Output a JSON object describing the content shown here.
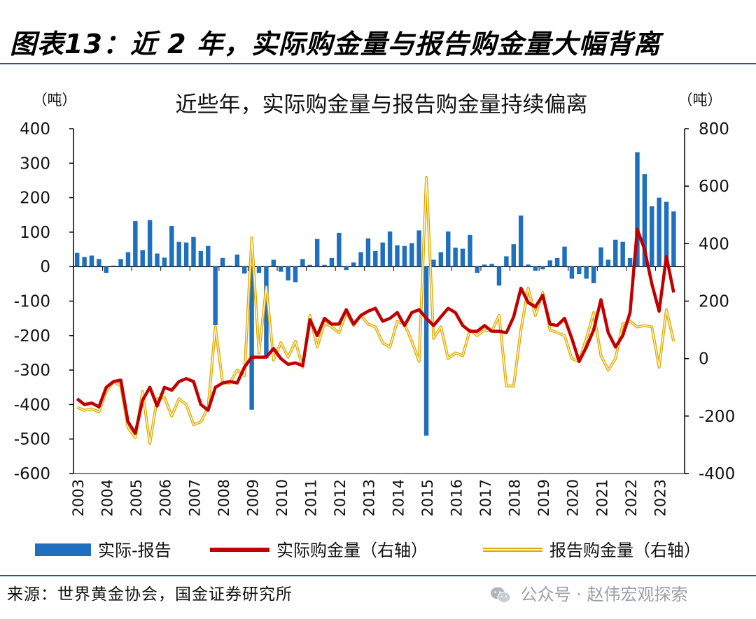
{
  "figure": {
    "title": "图表13：近 2 年，实际购金量与报告购金量大幅背离",
    "source": "来源：世界黄金协会，国金证券研究所",
    "watermark": "公众号 · 赵伟宏观探索"
  },
  "chart_data": {
    "type": "bar+line",
    "title": "近些年，实际购金量与报告购金量持续偏离",
    "left_axis_unit": "（吨）",
    "right_axis_unit": "（吨）",
    "left_ylim": [
      -600,
      400
    ],
    "left_ticks": [
      400,
      300,
      200,
      100,
      0,
      -100,
      -200,
      -300,
      -400,
      -500,
      -600
    ],
    "right_ylim": [
      -400,
      800
    ],
    "right_ticks": [
      800,
      600,
      400,
      200,
      0,
      -200,
      -400
    ],
    "x_ticks": [
      "2003",
      "2004",
      "2005",
      "2006",
      "2007",
      "2008",
      "2009",
      "2010",
      "2011",
      "2012",
      "2013",
      "2014",
      "2015",
      "2016",
      "2017",
      "2018",
      "2019",
      "2020",
      "2021",
      "2022",
      "2023"
    ],
    "x_start_year": 2003,
    "quarters_per_year": 4,
    "colors": {
      "bar": "#1f6fbf",
      "actual": "#c00000",
      "reported": "#f2c21b",
      "reported_edge": "#e0a800"
    },
    "series": [
      {
        "name": "实际-报告",
        "axis": "left",
        "type": "bar",
        "values": [
          40,
          28,
          32,
          22,
          -18,
          3,
          22,
          42,
          132,
          48,
          135,
          38,
          26,
          118,
          72,
          70,
          86,
          45,
          60,
          -170,
          25,
          3,
          35,
          -20,
          -415,
          -18,
          -265,
          20,
          -15,
          -40,
          -45,
          22,
          5,
          80,
          5,
          25,
          98,
          -10,
          12,
          42,
          82,
          45,
          70,
          102,
          62,
          60,
          68,
          105,
          -490,
          20,
          42,
          102,
          55,
          52,
          92,
          -18,
          6,
          8,
          -55,
          30,
          65,
          148,
          6,
          -12,
          -8,
          18,
          25,
          58,
          -35,
          -22,
          -35,
          -48,
          56,
          20,
          78,
          72,
          25,
          332,
          268,
          175,
          200,
          188,
          160
        ]
      },
      {
        "name": "实际购金量（右轴）",
        "axis": "right",
        "type": "line",
        "values": [
          -140,
          -160,
          -155,
          -168,
          -100,
          -80,
          -75,
          -220,
          -260,
          -145,
          -100,
          -165,
          -100,
          -110,
          -80,
          -70,
          -80,
          -160,
          -180,
          -100,
          -85,
          -80,
          -85,
          -30,
          5,
          5,
          5,
          35,
          0,
          -20,
          -15,
          -25,
          135,
          80,
          140,
          120,
          120,
          170,
          120,
          150,
          165,
          175,
          130,
          140,
          160,
          115,
          160,
          170,
          140,
          115,
          145,
          175,
          160,
          115,
          95,
          95,
          115,
          95,
          95,
          90,
          145,
          245,
          195,
          180,
          220,
          120,
          115,
          140,
          70,
          -10,
          40,
          100,
          205,
          90,
          40,
          80,
          160,
          450,
          380,
          260,
          165,
          355,
          230
        ]
      },
      {
        "name": "报告购金量（右轴）",
        "axis": "right",
        "type": "line",
        "values": [
          -170,
          -180,
          -175,
          -185,
          -115,
          -80,
          -95,
          -240,
          -275,
          -115,
          -295,
          -140,
          -135,
          -200,
          -140,
          -160,
          -230,
          -220,
          -170,
          110,
          -85,
          -85,
          -40,
          -60,
          420,
          20,
          250,
          -5,
          55,
          5,
          60,
          -30,
          150,
          40,
          125,
          110,
          90,
          160,
          115,
          150,
          120,
          110,
          55,
          40,
          130,
          120,
          60,
          -10,
          630,
          70,
          110,
          0,
          20,
          10,
          100,
          80,
          100,
          95,
          150,
          -95,
          -95,
          100,
          245,
          150,
          230,
          100,
          90,
          80,
          0,
          -10,
          70,
          160,
          10,
          -40,
          0,
          120,
          130,
          110,
          115,
          110,
          -30,
          170,
          60
        ]
      }
    ],
    "legend": [
      {
        "label": "实际-报告",
        "swatch": "bar"
      },
      {
        "label": "实际购金量（右轴）",
        "swatch": "actual"
      },
      {
        "label": "报告购金量（右轴）",
        "swatch": "reported"
      }
    ]
  }
}
